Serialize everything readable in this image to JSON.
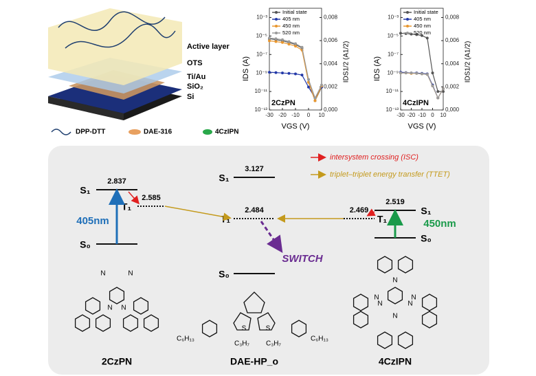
{
  "device": {
    "layers": [
      "Active layer",
      "OTS",
      "Ti/Au",
      "SiO₂",
      "Si"
    ],
    "legend": [
      "DPP-DTT",
      "DAE-316",
      "4CzIPN"
    ]
  },
  "chart_data": [
    {
      "type": "line",
      "log_y": true,
      "annotation": "2CzPN",
      "x_label": "VGS (V)",
      "y_label": "IDS (A)",
      "y2_label": "IDS1/2 (A1/2)",
      "x": [
        -30,
        -25,
        -20,
        -15,
        -10,
        -5,
        0,
        5,
        10
      ],
      "xlim": [
        -30,
        10
      ],
      "xticks": [
        -30,
        -20,
        -10,
        0,
        10
      ],
      "ylim": [
        1e-13,
        0.01
      ],
      "yticks": [
        {
          "value": 1e-13,
          "label": "10⁻¹³"
        },
        {
          "value": 1e-11,
          "label": "10⁻¹¹"
        },
        {
          "value": 1e-09,
          "label": "10⁻⁹"
        },
        {
          "value": 1e-07,
          "label": "10⁻⁷"
        },
        {
          "value": 1e-05,
          "label": "10⁻⁵"
        },
        {
          "value": 0.001,
          "label": "10⁻³"
        }
      ],
      "y2lim": [
        0,
        0.0088
      ],
      "y2ticks": [
        {
          "value": 0,
          "label": "0,000"
        },
        {
          "value": 0.002,
          "label": "0,002"
        },
        {
          "value": 0.004,
          "label": "0,004"
        },
        {
          "value": 0.006,
          "label": "0,006"
        },
        {
          "value": 0.008,
          "label": "0,008"
        }
      ],
      "series": [
        {
          "name": "Initial state",
          "color": "#555555",
          "values": [
            5e-06,
            4e-06,
            3e-06,
            2e-06,
            1.2e-06,
            5e-07,
            1e-10,
            1e-12,
            3e-11
          ]
        },
        {
          "name": "405 nm",
          "color": "#2339a8",
          "values": [
            1.2e-09,
            1.1e-09,
            1e-09,
            9e-10,
            8e-10,
            6e-10,
            3e-11,
            2e-12,
            3e-11
          ]
        },
        {
          "name": "450 nm",
          "color": "#e8962e",
          "values": [
            3e-06,
            2.5e-06,
            2e-06,
            1.3e-06,
            8e-07,
            3e-07,
            1e-10,
            1e-12,
            4e-11
          ]
        },
        {
          "name": "520 nm",
          "color": "#9a9a9a",
          "values": [
            6e-06,
            5e-06,
            4e-06,
            2.5e-06,
            1.5e-06,
            6e-07,
            2e-10,
            2e-12,
            5e-11
          ]
        }
      ]
    },
    {
      "type": "line",
      "log_y": true,
      "annotation": "4CzIPN",
      "x_label": "VGS (V)",
      "y_label": "IDS (A)",
      "y2_label": "IDS1/2 (A1/2)",
      "x": [
        -30,
        -25,
        -20,
        -15,
        -10,
        -5,
        0,
        5,
        10
      ],
      "xlim": [
        -30,
        10
      ],
      "xticks": [
        -30,
        -20,
        -10,
        0,
        10
      ],
      "ylim": [
        1e-13,
        0.01
      ],
      "yticks": [
        {
          "value": 1e-13,
          "label": "10⁻¹³"
        },
        {
          "value": 1e-11,
          "label": "10⁻¹¹"
        },
        {
          "value": 1e-09,
          "label": "10⁻⁹"
        },
        {
          "value": 1e-07,
          "label": "10⁻⁷"
        },
        {
          "value": 1e-05,
          "label": "10⁻⁵"
        },
        {
          "value": 0.001,
          "label": "10⁻³"
        }
      ],
      "y2lim": [
        0,
        0.0088
      ],
      "y2ticks": [
        {
          "value": 0,
          "label": "0,000"
        },
        {
          "value": 0.002,
          "label": "0,002"
        },
        {
          "value": 0.004,
          "label": "0,004"
        },
        {
          "value": 0.006,
          "label": "0,006"
        },
        {
          "value": 0.008,
          "label": "0,008"
        }
      ],
      "series": [
        {
          "name": "Initial state",
          "color": "#555555",
          "values": [
            2e-05,
            1.8e-05,
            1.6e-05,
            1.4e-05,
            1.1e-05,
            6e-06,
            1e-09,
            1e-11,
            1e-11
          ]
        },
        {
          "name": "405 nm",
          "color": "#2339a8",
          "values": [
            1.2e-09,
            1.1e-09,
            1e-09,
            1e-09,
            9e-10,
            8e-10,
            5e-11,
            2e-12,
            2e-11
          ]
        },
        {
          "name": "450 nm",
          "color": "#e8962e",
          "values": [
            1e-09,
            1e-09,
            9e-10,
            9e-10,
            8e-10,
            7e-10,
            4e-11,
            2e-12,
            2e-11
          ]
        },
        {
          "name": "520 nm",
          "color": "#9a9a9a",
          "values": [
            1e-09,
            1e-09,
            1e-09,
            9e-10,
            8e-10,
            7e-10,
            4e-11,
            2e-12,
            2e-11
          ]
        }
      ]
    }
  ],
  "energy_diagram": {
    "legend": {
      "isc": "intersystem crossing (ISC)",
      "ttet": "triplet–triplet energy transfer (TTET)"
    },
    "switch_label": "SWITCH",
    "molecules": [
      {
        "name": "2CzPN",
        "excitation": "405nm",
        "levels": [
          {
            "state": "S₁",
            "energy": 2.837
          },
          {
            "state": "T₁",
            "energy": 2.585
          },
          {
            "state": "S₀"
          }
        ],
        "atoms": [
          "N",
          "N",
          "N",
          "N"
        ]
      },
      {
        "name": "DAE-HP_o",
        "levels": [
          {
            "state": "S₁",
            "energy": 3.127
          },
          {
            "state": "T₁",
            "energy": 2.484
          },
          {
            "state": "S₀"
          }
        ],
        "atoms": [
          "C₆H₁₃",
          "C₃H₇",
          "C₃H₇",
          "C₆H₁₃",
          "S",
          "S"
        ]
      },
      {
        "name": "4CzIPN",
        "excitation": "450nm",
        "levels": [
          {
            "state": "S₁",
            "energy": 2.519
          },
          {
            "state": "T₁",
            "energy": 2.469
          },
          {
            "state": "S₀"
          }
        ],
        "atoms": [
          "N",
          "N",
          "N",
          "N",
          "N",
          "N"
        ]
      }
    ]
  }
}
